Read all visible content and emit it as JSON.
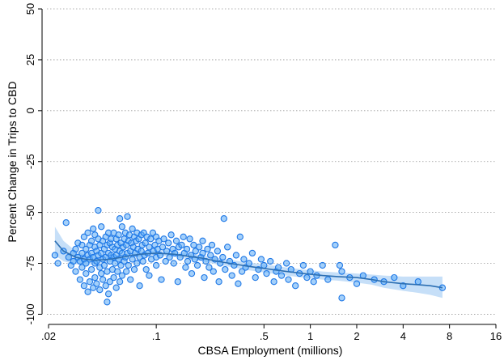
{
  "chart_data": {
    "type": "scatter",
    "title": "",
    "xlabel": "CBSA Employment (millions)",
    "ylabel": "Percent Change in Trips to CBD",
    "x_scale": "log",
    "xlim": [
      0.02,
      16
    ],
    "ylim": [
      -105,
      52
    ],
    "x_ticks": [
      {
        "value": 0.02,
        "label": ".02"
      },
      {
        "value": 0.1,
        "label": ".1"
      },
      {
        "value": 0.5,
        "label": ".5"
      },
      {
        "value": 1,
        "label": "1"
      },
      {
        "value": 2,
        "label": "2"
      },
      {
        "value": 4,
        "label": "4"
      },
      {
        "value": 8,
        "label": "8"
      },
      {
        "value": 16,
        "label": "16"
      }
    ],
    "y_ticks": [
      {
        "value": 50,
        "label": "50"
      },
      {
        "value": 25,
        "label": "25"
      },
      {
        "value": 0,
        "label": "0"
      },
      {
        "value": -25,
        "label": "-25"
      },
      {
        "value": -50,
        "label": "-50"
      },
      {
        "value": -75,
        "label": "-75"
      },
      {
        "value": -100,
        "label": "-100"
      }
    ],
    "grid": "horizontal dotted",
    "colors": {
      "points_fill": "#5aa9f5",
      "points_stroke": "#1f78e6",
      "line": "#2c6fb3",
      "band": "#bcd9f7"
    },
    "fit_line": [
      [
        0.022,
        -64
      ],
      [
        0.025,
        -69
      ],
      [
        0.03,
        -72
      ],
      [
        0.035,
        -73
      ],
      [
        0.04,
        -73.5
      ],
      [
        0.05,
        -73
      ],
      [
        0.06,
        -72
      ],
      [
        0.07,
        -71
      ],
      [
        0.08,
        -70.5
      ],
      [
        0.1,
        -70
      ],
      [
        0.13,
        -70.5
      ],
      [
        0.16,
        -71.5
      ],
      [
        0.2,
        -72.5
      ],
      [
        0.25,
        -74
      ],
      [
        0.3,
        -75
      ],
      [
        0.4,
        -76.5
      ],
      [
        0.5,
        -77.5
      ],
      [
        0.7,
        -79
      ],
      [
        0.9,
        -80
      ],
      [
        1.2,
        -81
      ],
      [
        1.5,
        -81.5
      ],
      [
        2,
        -82
      ],
      [
        2.5,
        -83
      ],
      [
        3,
        -84
      ],
      [
        4,
        -85
      ],
      [
        5,
        -85.5
      ],
      [
        6,
        -86
      ],
      [
        7.2,
        -87
      ]
    ],
    "fit_band": [
      [
        0.022,
        -57,
        -71
      ],
      [
        0.025,
        -64,
        -74
      ],
      [
        0.03,
        -69,
        -75.5
      ],
      [
        0.035,
        -71,
        -75.8
      ],
      [
        0.04,
        -71.8,
        -75.5
      ],
      [
        0.05,
        -71.5,
        -74.5
      ],
      [
        0.06,
        -70.6,
        -73.4
      ],
      [
        0.07,
        -69.7,
        -72.3
      ],
      [
        0.08,
        -69.2,
        -71.8
      ],
      [
        0.1,
        -68.8,
        -71.2
      ],
      [
        0.13,
        -69.2,
        -71.8
      ],
      [
        0.16,
        -70.1,
        -72.9
      ],
      [
        0.2,
        -71,
        -74
      ],
      [
        0.25,
        -72.4,
        -75.6
      ],
      [
        0.3,
        -73.3,
        -76.7
      ],
      [
        0.4,
        -74.6,
        -78.4
      ],
      [
        0.5,
        -75.5,
        -79.5
      ],
      [
        0.7,
        -77,
        -81
      ],
      [
        0.9,
        -78,
        -82
      ],
      [
        1.2,
        -79,
        -83
      ],
      [
        1.5,
        -79.5,
        -83.5
      ],
      [
        2,
        -80,
        -84.5
      ],
      [
        2.5,
        -80.5,
        -85.5
      ],
      [
        3,
        -81,
        -87
      ],
      [
        4,
        -81.5,
        -88.5
      ],
      [
        5,
        -81.5,
        -89.5
      ],
      [
        6,
        -81.5,
        -90.5
      ],
      [
        7.2,
        -81.5,
        -92
      ]
    ],
    "points": [
      [
        0.022,
        -71
      ],
      [
        0.023,
        -75
      ],
      [
        0.025,
        -69
      ],
      [
        0.026,
        -55
      ],
      [
        0.027,
        -72
      ],
      [
        0.028,
        -76
      ],
      [
        0.029,
        -70
      ],
      [
        0.029,
        -74
      ],
      [
        0.03,
        -68
      ],
      [
        0.03,
        -79
      ],
      [
        0.031,
        -65
      ],
      [
        0.031,
        -72
      ],
      [
        0.032,
        -74
      ],
      [
        0.032,
        -83
      ],
      [
        0.033,
        -66
      ],
      [
        0.033,
        -70
      ],
      [
        0.033,
        -77
      ],
      [
        0.034,
        -62
      ],
      [
        0.034,
        -73
      ],
      [
        0.034,
        -86
      ],
      [
        0.035,
        -68
      ],
      [
        0.035,
        -75
      ],
      [
        0.035,
        -80
      ],
      [
        0.036,
        -60
      ],
      [
        0.036,
        -71
      ],
      [
        0.036,
        -89
      ],
      [
        0.037,
        -66
      ],
      [
        0.037,
        -73
      ],
      [
        0.037,
        -84
      ],
      [
        0.038,
        -64
      ],
      [
        0.038,
        -70
      ],
      [
        0.038,
        -78
      ],
      [
        0.039,
        -58
      ],
      [
        0.039,
        -72
      ],
      [
        0.039,
        -87
      ],
      [
        0.04,
        -61
      ],
      [
        0.04,
        -67
      ],
      [
        0.04,
        -75
      ],
      [
        0.04,
        -82
      ],
      [
        0.041,
        -69
      ],
      [
        0.041,
        -74
      ],
      [
        0.041,
        -85
      ],
      [
        0.042,
        -49
      ],
      [
        0.042,
        -63
      ],
      [
        0.042,
        -71
      ],
      [
        0.043,
        -66
      ],
      [
        0.043,
        -77
      ],
      [
        0.043,
        -88
      ],
      [
        0.044,
        -57
      ],
      [
        0.044,
        -70
      ],
      [
        0.044,
        -80
      ],
      [
        0.045,
        -64
      ],
      [
        0.045,
        -73
      ],
      [
        0.045,
        -83
      ],
      [
        0.046,
        -68
      ],
      [
        0.046,
        -76
      ],
      [
        0.047,
        -62
      ],
      [
        0.047,
        -72
      ],
      [
        0.047,
        -86
      ],
      [
        0.048,
        -66
      ],
      [
        0.048,
        -79
      ],
      [
        0.048,
        -94
      ],
      [
        0.049,
        -60
      ],
      [
        0.049,
        -70
      ],
      [
        0.049,
        -90
      ],
      [
        0.05,
        -65
      ],
      [
        0.05,
        -74
      ],
      [
        0.05,
        -84
      ],
      [
        0.051,
        -63
      ],
      [
        0.051,
        -71
      ],
      [
        0.052,
        -67
      ],
      [
        0.052,
        -78
      ],
      [
        0.053,
        -60
      ],
      [
        0.053,
        -72
      ],
      [
        0.053,
        -82
      ],
      [
        0.054,
        -68
      ],
      [
        0.054,
        -75
      ],
      [
        0.055,
        -63
      ],
      [
        0.055,
        -71
      ],
      [
        0.055,
        -87
      ],
      [
        0.056,
        -66
      ],
      [
        0.056,
        -79
      ],
      [
        0.057,
        -61
      ],
      [
        0.057,
        -73
      ],
      [
        0.058,
        -53
      ],
      [
        0.058,
        -69
      ],
      [
        0.058,
        -84
      ],
      [
        0.059,
        -65
      ],
      [
        0.059,
        -76
      ],
      [
        0.06,
        -57
      ],
      [
        0.06,
        -70
      ],
      [
        0.06,
        -81
      ],
      [
        0.061,
        -67
      ],
      [
        0.062,
        -63
      ],
      [
        0.062,
        -74
      ],
      [
        0.063,
        -60
      ],
      [
        0.063,
        -72
      ],
      [
        0.064,
        -66
      ],
      [
        0.064,
        -79
      ],
      [
        0.065,
        -52
      ],
      [
        0.065,
        -70
      ],
      [
        0.066,
        -64
      ],
      [
        0.066,
        -76
      ],
      [
        0.067,
        -61
      ],
      [
        0.068,
        -69
      ],
      [
        0.068,
        -83
      ],
      [
        0.069,
        -65
      ],
      [
        0.07,
        -58
      ],
      [
        0.07,
        -73
      ],
      [
        0.071,
        -67
      ],
      [
        0.072,
        -62
      ],
      [
        0.072,
        -78
      ],
      [
        0.073,
        -70
      ],
      [
        0.074,
        -64
      ],
      [
        0.075,
        -60
      ],
      [
        0.075,
        -75
      ],
      [
        0.076,
        -68
      ],
      [
        0.077,
        -63
      ],
      [
        0.078,
        -72
      ],
      [
        0.078,
        -86
      ],
      [
        0.08,
        -61
      ],
      [
        0.08,
        -69
      ],
      [
        0.081,
        -66
      ],
      [
        0.082,
        -74
      ],
      [
        0.083,
        -60
      ],
      [
        0.084,
        -71
      ],
      [
        0.085,
        -65
      ],
      [
        0.086,
        -78
      ],
      [
        0.087,
        -62
      ],
      [
        0.088,
        -70
      ],
      [
        0.09,
        -67
      ],
      [
        0.09,
        -81
      ],
      [
        0.092,
        -63
      ],
      [
        0.093,
        -73
      ],
      [
        0.095,
        -60
      ],
      [
        0.096,
        -69
      ],
      [
        0.098,
        -66
      ],
      [
        0.1,
        -62
      ],
      [
        0.1,
        -72
      ],
      [
        0.1,
        -76
      ],
      [
        0.102,
        -68
      ],
      [
        0.104,
        -64
      ],
      [
        0.106,
        -71
      ],
      [
        0.108,
        -83
      ],
      [
        0.11,
        -67
      ],
      [
        0.112,
        -63
      ],
      [
        0.115,
        -74
      ],
      [
        0.117,
        -69
      ],
      [
        0.12,
        -65
      ],
      [
        0.122,
        -72
      ],
      [
        0.125,
        -61
      ],
      [
        0.128,
        -68
      ],
      [
        0.13,
        -75
      ],
      [
        0.132,
        -70
      ],
      [
        0.135,
        -64
      ],
      [
        0.138,
        -84
      ],
      [
        0.14,
        -67
      ],
      [
        0.143,
        -72
      ],
      [
        0.146,
        -66
      ],
      [
        0.15,
        -62
      ],
      [
        0.152,
        -70
      ],
      [
        0.155,
        -77
      ],
      [
        0.158,
        -68
      ],
      [
        0.16,
        -74
      ],
      [
        0.165,
        -63
      ],
      [
        0.168,
        -71
      ],
      [
        0.17,
        -80
      ],
      [
        0.175,
        -66
      ],
      [
        0.178,
        -73
      ],
      [
        0.18,
        -69
      ],
      [
        0.185,
        -76
      ],
      [
        0.19,
        -67
      ],
      [
        0.195,
        -72
      ],
      [
        0.2,
        -64
      ],
      [
        0.2,
        -70
      ],
      [
        0.205,
        -82
      ],
      [
        0.21,
        -74
      ],
      [
        0.215,
        -68
      ],
      [
        0.22,
        -77
      ],
      [
        0.225,
        -71
      ],
      [
        0.23,
        -66
      ],
      [
        0.235,
        -79
      ],
      [
        0.24,
        -73
      ],
      [
        0.25,
        -69
      ],
      [
        0.255,
        -84
      ],
      [
        0.26,
        -75
      ],
      [
        0.27,
        -72
      ],
      [
        0.275,
        -53
      ],
      [
        0.28,
        -78
      ],
      [
        0.29,
        -67
      ],
      [
        0.3,
        -74
      ],
      [
        0.31,
        -81
      ],
      [
        0.32,
        -76
      ],
      [
        0.33,
        -71
      ],
      [
        0.34,
        -85
      ],
      [
        0.35,
        -62
      ],
      [
        0.36,
        -79
      ],
      [
        0.37,
        -73
      ],
      [
        0.38,
        -77
      ],
      [
        0.4,
        -75
      ],
      [
        0.42,
        -70
      ],
      [
        0.44,
        -82
      ],
      [
        0.46,
        -78
      ],
      [
        0.48,
        -73
      ],
      [
        0.5,
        -76
      ],
      [
        0.52,
        -80
      ],
      [
        0.55,
        -74
      ],
      [
        0.58,
        -84
      ],
      [
        0.6,
        -79
      ],
      [
        0.62,
        -77
      ],
      [
        0.65,
        -81
      ],
      [
        0.7,
        -75
      ],
      [
        0.72,
        -83
      ],
      [
        0.75,
        -78
      ],
      [
        0.8,
        -86
      ],
      [
        0.85,
        -80
      ],
      [
        0.9,
        -76
      ],
      [
        0.95,
        -82
      ],
      [
        1.0,
        -79
      ],
      [
        1.05,
        -84
      ],
      [
        1.1,
        -81
      ],
      [
        1.2,
        -76
      ],
      [
        1.3,
        -83
      ],
      [
        1.45,
        -66
      ],
      [
        1.55,
        -76
      ],
      [
        1.6,
        -79
      ],
      [
        1.6,
        -92
      ],
      [
        1.8,
        -82
      ],
      [
        2.0,
        -85
      ],
      [
        2.2,
        -81
      ],
      [
        2.6,
        -83
      ],
      [
        3.0,
        -84
      ],
      [
        3.5,
        -82
      ],
      [
        4.0,
        -86
      ],
      [
        5.0,
        -84
      ],
      [
        7.2,
        -87
      ]
    ]
  }
}
